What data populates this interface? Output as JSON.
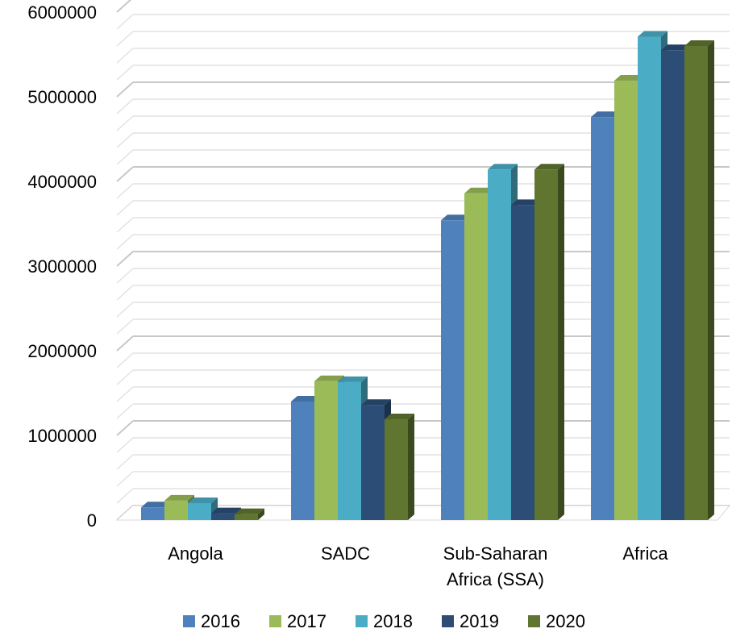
{
  "chart_data": {
    "type": "bar",
    "style": "3d-clustered-column",
    "categories": [
      "Angola",
      "SADC",
      "Sub-Saharan Africa (SSA)",
      "Africa"
    ],
    "category_lines": [
      [
        "Angola"
      ],
      [
        "SADC"
      ],
      [
        "Sub-Saharan",
        "Africa (SSA)"
      ],
      [
        "Africa"
      ]
    ],
    "series": [
      {
        "name": "2016",
        "color": "#4F81BD",
        "values": [
          150000,
          1400000,
          3540000,
          4760000
        ]
      },
      {
        "name": "2017",
        "color": "#9BBB59",
        "values": [
          230000,
          1640000,
          3860000,
          5190000
        ]
      },
      {
        "name": "2018",
        "color": "#4BACC6",
        "values": [
          200000,
          1630000,
          4140000,
          5710000
        ]
      },
      {
        "name": "2019",
        "color": "#2C4D75",
        "values": [
          80000,
          1360000,
          3720000,
          5550000
        ]
      },
      {
        "name": "2020",
        "color": "#5F7530",
        "values": [
          70000,
          1190000,
          4140000,
          5600000
        ]
      }
    ],
    "ylim": [
      0,
      6000000
    ],
    "yticks": [
      0,
      1000000,
      2000000,
      3000000,
      4000000,
      5000000,
      6000000
    ],
    "title": "",
    "xlabel": "",
    "ylabel": "",
    "grid": true,
    "legend_position": "bottom"
  }
}
